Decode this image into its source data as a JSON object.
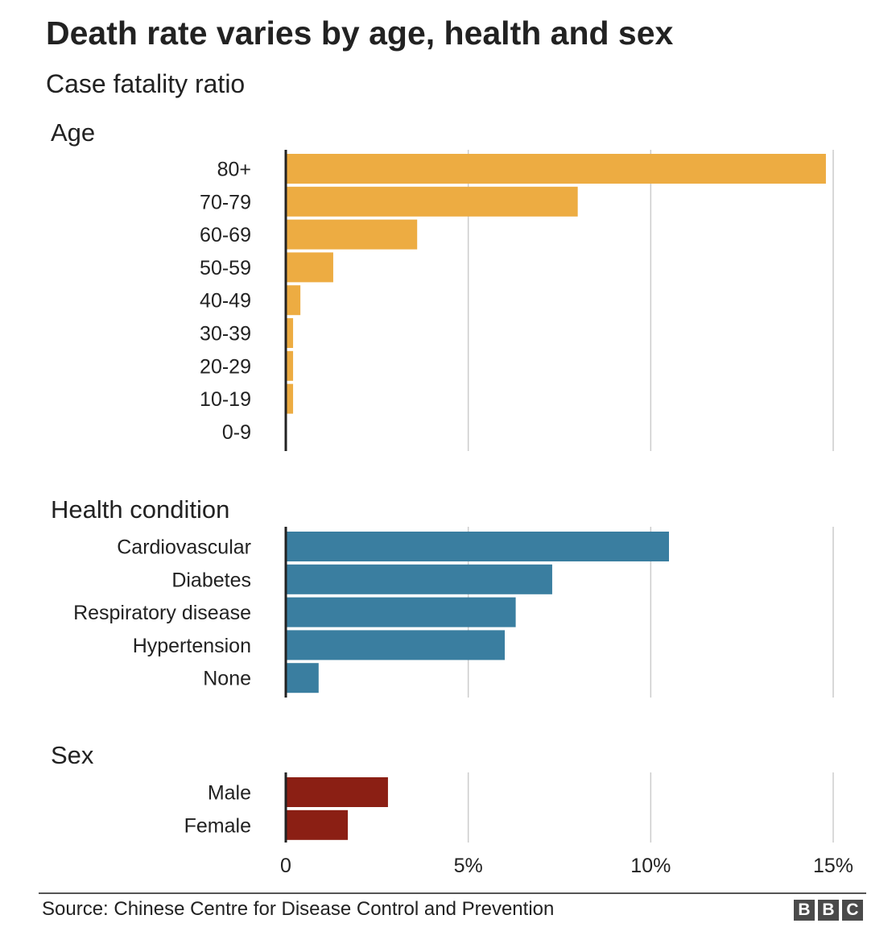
{
  "title": "Death rate varies by age, health and sex",
  "subtitle": "Case fatality ratio",
  "source": "Source: Chinese Centre for Disease Control and Prevention",
  "logo": [
    "B",
    "B",
    "C"
  ],
  "colors": {
    "age": "#EDAC42",
    "health": "#3A7EA0",
    "sex": "#8B1F14",
    "grid": "#cccccc",
    "axis": "#222222"
  },
  "chart_data": [
    {
      "type": "bar",
      "orientation": "horizontal",
      "title": "Age",
      "categories": [
        "80+",
        "70-79",
        "60-69",
        "50-59",
        "40-49",
        "30-39",
        "20-29",
        "10-19",
        "0-9"
      ],
      "values": [
        14.8,
        8.0,
        3.6,
        1.3,
        0.4,
        0.2,
        0.2,
        0.2,
        0
      ],
      "xlim": [
        0,
        15
      ],
      "grid": true
    },
    {
      "type": "bar",
      "orientation": "horizontal",
      "title": "Health condition",
      "categories": [
        "Cardiovascular",
        "Diabetes",
        "Respiratory disease",
        "Hypertension",
        "None"
      ],
      "values": [
        10.5,
        7.3,
        6.3,
        6.0,
        0.9
      ],
      "xlim": [
        0,
        15
      ],
      "grid": true
    },
    {
      "type": "bar",
      "orientation": "horizontal",
      "title": "Sex",
      "categories": [
        "Male",
        "Female"
      ],
      "values": [
        2.8,
        1.7
      ],
      "xlim": [
        0,
        15
      ],
      "grid": true,
      "xticks": [
        0,
        5,
        10,
        15
      ],
      "xtick_labels": [
        "0",
        "5%",
        "10%",
        "15%"
      ]
    }
  ]
}
